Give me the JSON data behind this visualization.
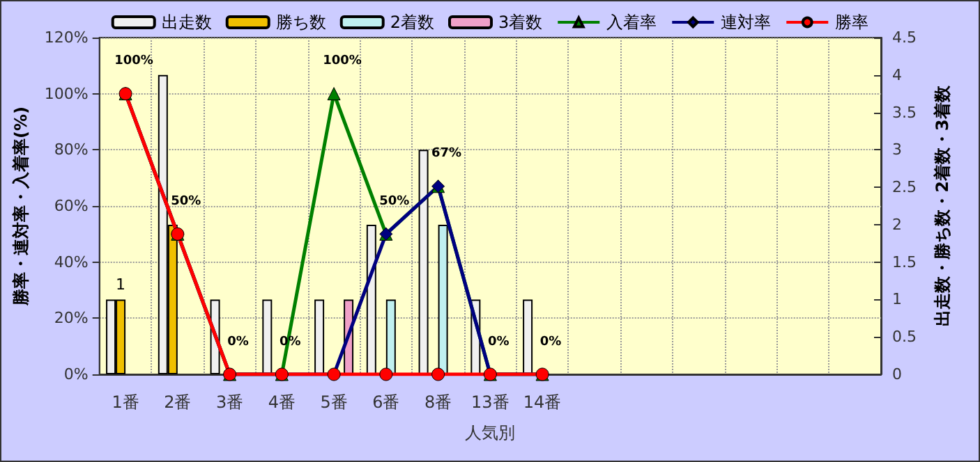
{
  "chart_data": {
    "type": "bar",
    "xlabel": "人気別",
    "ylabel": "勝率・連対率・入着率(%)",
    "y2label": "出走数・勝ち数・2着数・3着数",
    "categories": [
      "1番",
      "2番",
      "3番",
      "4番",
      "5番",
      "6番",
      "8番",
      "13番",
      "14番",
      null,
      null,
      null,
      null,
      null,
      null
    ],
    "series": [
      {
        "name": "出走数",
        "axis": "y2",
        "color": "#f0f0f0",
        "values": [
          1,
          4,
          1,
          1,
          1,
          2,
          3,
          1,
          1,
          null,
          null,
          null,
          null,
          null,
          null
        ]
      },
      {
        "name": "勝ち数",
        "axis": "y2",
        "color": "#f0c000",
        "values": [
          1,
          2,
          null,
          null,
          null,
          null,
          null,
          null,
          null,
          null,
          null,
          null,
          null,
          null,
          null
        ],
        "value_labels": [
          "1",
          null,
          null,
          null,
          null,
          null,
          null,
          null,
          null,
          null,
          null,
          null,
          null,
          null,
          null
        ]
      },
      {
        "name": "2着数",
        "axis": "y2",
        "color": "#c0f0f0",
        "values": [
          null,
          null,
          null,
          null,
          null,
          1,
          2,
          null,
          null,
          null,
          null,
          null,
          null,
          null,
          null
        ]
      },
      {
        "name": "3着数",
        "axis": "y2",
        "color": "#f0a0c8",
        "values": [
          null,
          null,
          null,
          null,
          1,
          null,
          null,
          null,
          null,
          null,
          null,
          null,
          null,
          null,
          null
        ]
      },
      {
        "name": "入着率",
        "type": "line",
        "marker": "triangle",
        "color": "#008000",
        "values": [
          100,
          50,
          0,
          0,
          100,
          50,
          67,
          0,
          0,
          null,
          null,
          null,
          null,
          null,
          null
        ],
        "value_labels": [
          "100%",
          "50%",
          "0%",
          "0%",
          "100%",
          "50%",
          "67%",
          "0%",
          "0%",
          null,
          null,
          null,
          null,
          null,
          null
        ]
      },
      {
        "name": "連対率",
        "type": "line",
        "marker": "diamond",
        "color": "#000080",
        "values": [
          100,
          50,
          0,
          0,
          0,
          50,
          67,
          0,
          0,
          null,
          null,
          null,
          null,
          null,
          null
        ]
      },
      {
        "name": "勝率",
        "type": "line",
        "marker": "circle",
        "color": "#ff0000",
        "values": [
          100,
          50,
          0,
          0,
          0,
          0,
          0,
          0,
          0,
          null,
          null,
          null,
          null,
          null,
          null
        ]
      }
    ],
    "ylim": [
      0,
      120
    ],
    "yticks": [
      {
        "value": 0,
        "label": "0%"
      },
      {
        "value": 20,
        "label": "20%"
      },
      {
        "value": 40,
        "label": "40%"
      },
      {
        "value": 60,
        "label": "60%"
      },
      {
        "value": 80,
        "label": "80%"
      },
      {
        "value": 100,
        "label": "100%"
      },
      {
        "value": 120,
        "label": "120%"
      }
    ],
    "y2lim": [
      0,
      4.5
    ],
    "y2ticks": [
      0,
      0.5,
      1,
      1.5,
      2,
      2.5,
      3,
      3.5,
      4,
      4.5
    ],
    "grid": true,
    "legend": "top"
  }
}
